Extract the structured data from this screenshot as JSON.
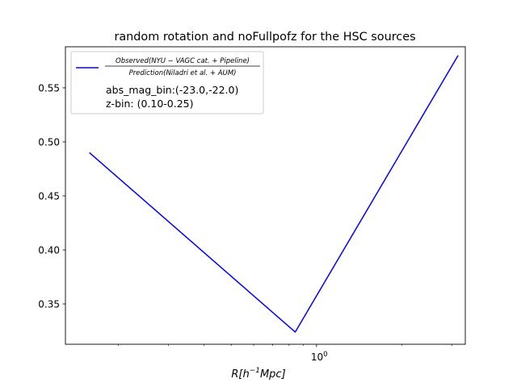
{
  "chart_data": {
    "type": "line",
    "title": "random rotation and noFullpofz for the HSC sources",
    "xlabel": {
      "main": "R[h",
      "sup": "−1",
      "rest": "Mpc]"
    },
    "xscale": "log",
    "xlim": [
      0.13,
      3.35
    ],
    "ylim": [
      0.3127,
      0.588
    ],
    "xticks": [
      {
        "value": 1.0,
        "label_base": "10",
        "label_exp": "0"
      }
    ],
    "x_minor_ticks": [
      0.2,
      0.3,
      0.4,
      0.5,
      0.6,
      0.7,
      0.8,
      0.9,
      2.0,
      3.0
    ],
    "yticks": [
      {
        "value": 0.35,
        "label": "0.35"
      },
      {
        "value": 0.4,
        "label": "0.40"
      },
      {
        "value": 0.45,
        "label": "0.45"
      },
      {
        "value": 0.5,
        "label": "0.50"
      },
      {
        "value": 0.55,
        "label": "0.55"
      }
    ],
    "grid": false,
    "legend_position": "upper-left",
    "series": [
      {
        "name_numerator": "Observed(NYU − VAGC cat. + Pipeline)",
        "name_denominator": "Prediction(Niladri et al. + AUM)",
        "color": "#0000ff",
        "x": [
          0.158,
          0.841,
          3.16
        ],
        "y": [
          0.49,
          0.324,
          0.58
        ]
      }
    ],
    "legend_extra": [
      "abs_mag_bin:(-23.0,-22.0)",
      "z-bin: (0.10-0.25)"
    ]
  }
}
